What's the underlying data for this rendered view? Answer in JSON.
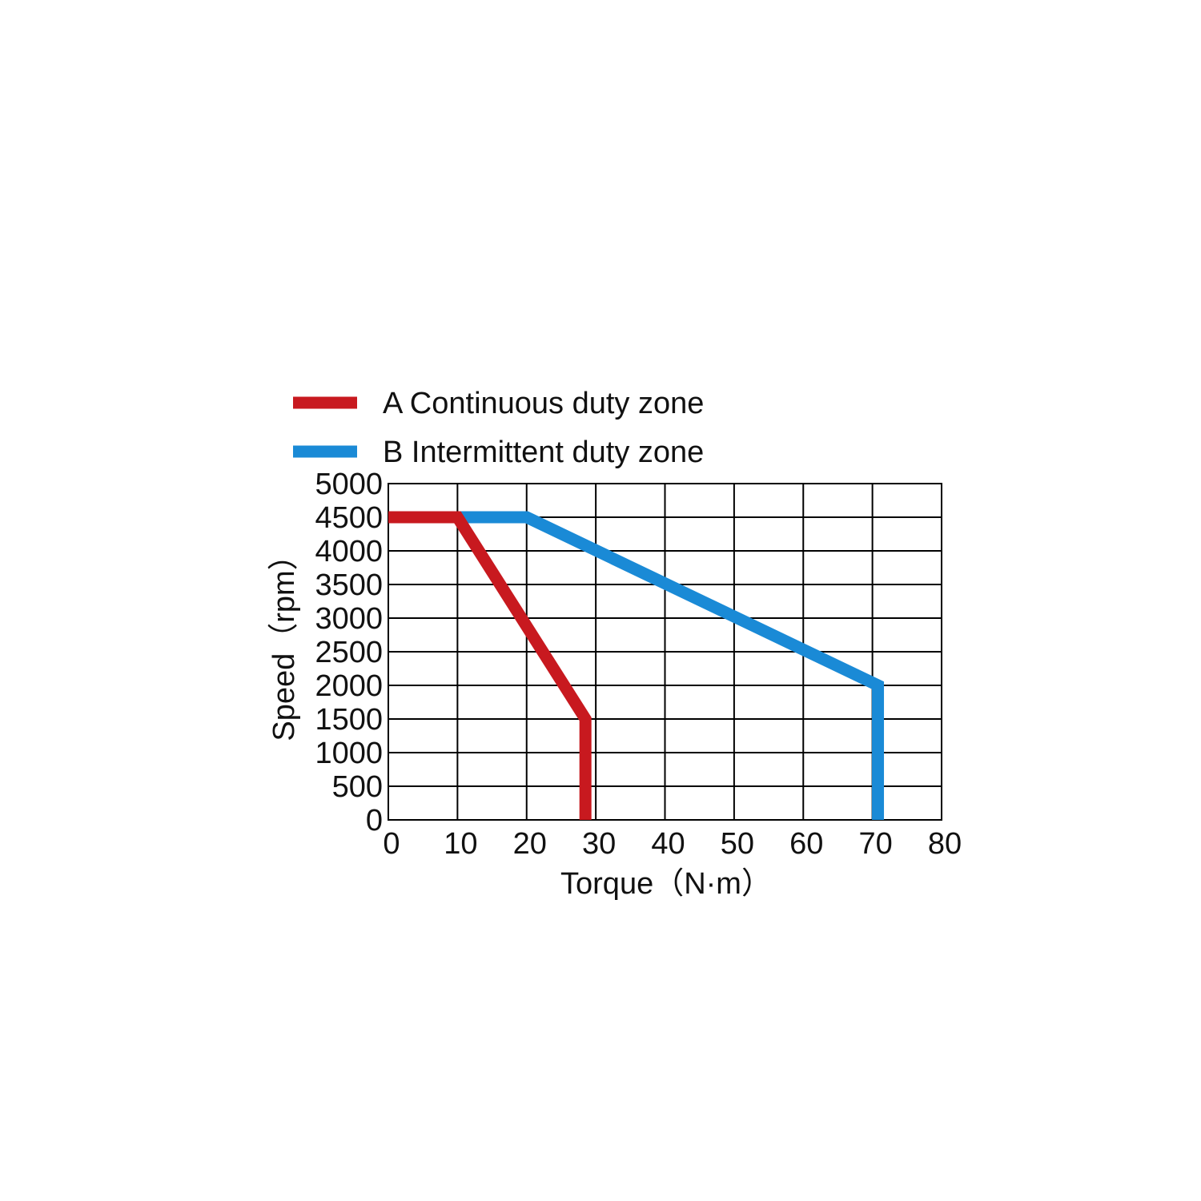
{
  "chart_data": {
    "type": "line",
    "title": "",
    "xlabel": "Torque（N·m）",
    "ylabel": "Speed（rpm）",
    "xlim": [
      0,
      80
    ],
    "ylim": [
      0,
      5000
    ],
    "xticks": [
      0,
      10,
      20,
      30,
      40,
      50,
      60,
      70,
      80
    ],
    "yticks": [
      0,
      500,
      1000,
      1500,
      2000,
      2500,
      3000,
      3500,
      4000,
      4500,
      5000
    ],
    "grid": true,
    "legend_position": "top-left, above plot",
    "series": [
      {
        "name": "A Continuous duty zone",
        "color": "#c8191f",
        "points": [
          [
            0,
            4500
          ],
          [
            10,
            4500
          ],
          [
            28.5,
            1500
          ],
          [
            28.5,
            0
          ]
        ]
      },
      {
        "name": "B Intermittent duty zone",
        "color": "#1a8ad6",
        "points": [
          [
            10,
            4500
          ],
          [
            20,
            4500
          ],
          [
            70.8,
            2000
          ],
          [
            70.8,
            0
          ]
        ]
      }
    ]
  }
}
